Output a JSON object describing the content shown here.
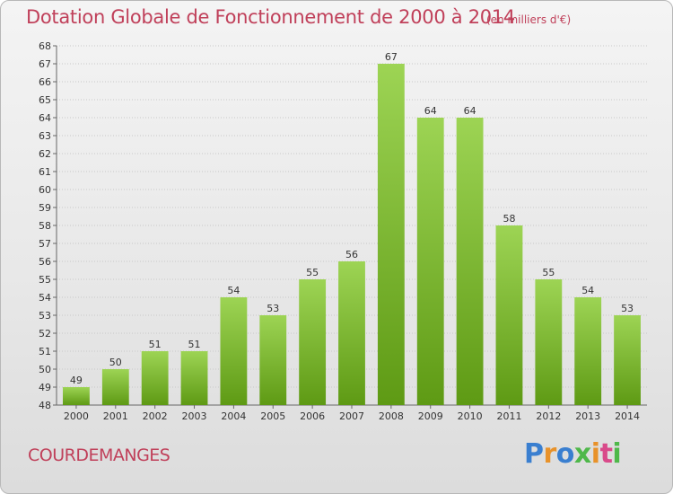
{
  "header": {
    "title": "Dotation Globale de Fonctionnement de 2000 à 2014",
    "unit_note": "(en milliers d'€)"
  },
  "footer": {
    "commune": "COURDEMANGES",
    "logo_text": "Proxiti"
  },
  "colors": {
    "title": "#c0405a",
    "bar_top": "#9dd454",
    "bar_bottom": "#5e9a14",
    "grid": "#c8c8c8"
  },
  "chart_data": {
    "type": "bar",
    "title": "Dotation Globale de Fonctionnement de 2000 à 2014",
    "subtitle": "(en milliers d'€)",
    "xlabel": "",
    "ylabel": "",
    "categories": [
      "2000",
      "2001",
      "2002",
      "2003",
      "2004",
      "2005",
      "2006",
      "2007",
      "2008",
      "2009",
      "2010",
      "2011",
      "2012",
      "2013",
      "2014"
    ],
    "values": [
      49,
      50,
      51,
      51,
      54,
      53,
      55,
      56,
      67,
      64,
      64,
      58,
      55,
      54,
      53
    ],
    "ylim": [
      48,
      68
    ],
    "ytick_step": 1,
    "grid": true,
    "data_labels": true
  }
}
